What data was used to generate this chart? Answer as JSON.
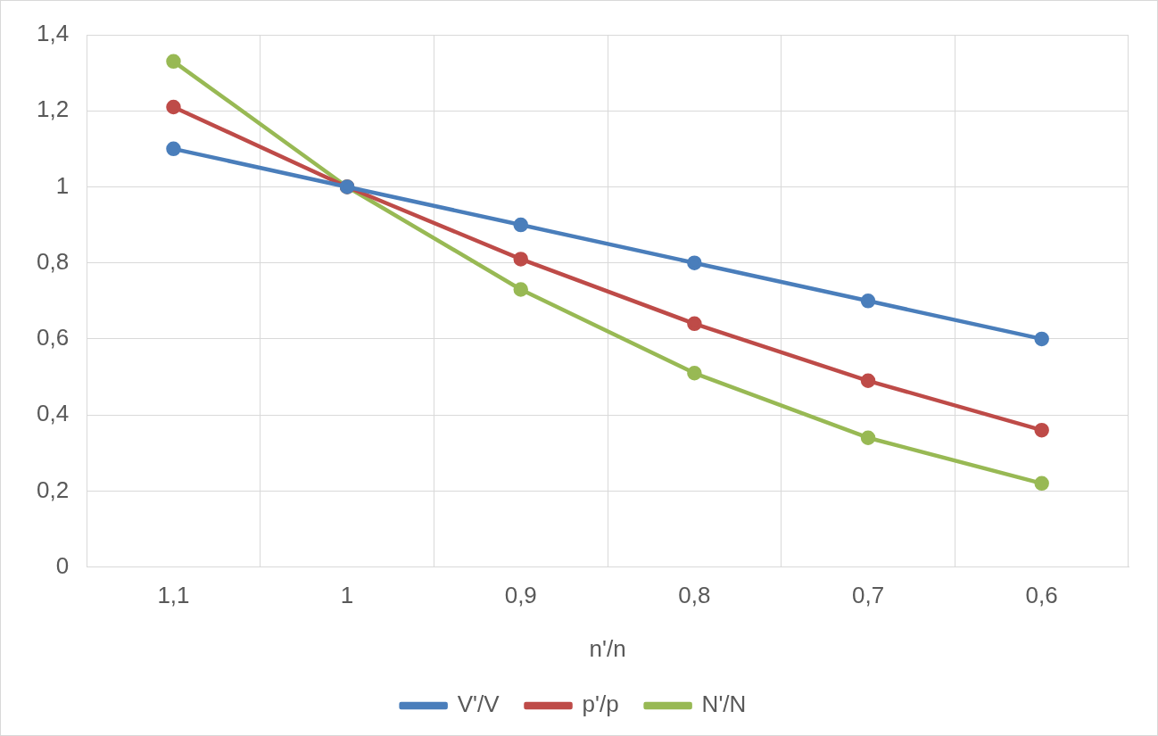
{
  "chart_data": {
    "type": "line",
    "xlabel": "n'/n",
    "categories": [
      "1,1",
      "1",
      "0,9",
      "0,8",
      "0,7",
      "0,6"
    ],
    "series": [
      {
        "name": "V'/V",
        "color": "#4a7ebb",
        "values": [
          1.1,
          1,
          0.9,
          0.8,
          0.7,
          0.6
        ]
      },
      {
        "name": "p'/p",
        "color": "#be4b48",
        "values": [
          1.21,
          1,
          0.81,
          0.64,
          0.49,
          0.36
        ]
      },
      {
        "name": "N'/N",
        "color": "#98b954",
        "values": [
          1.33,
          1,
          0.73,
          0.51,
          0.34,
          0.22
        ]
      }
    ],
    "ylim": [
      0,
      1.4
    ],
    "yticks": [
      0,
      {
        "value": 0.2,
        "label": "0,2"
      },
      {
        "value": 0.4,
        "label": "0,4"
      },
      {
        "value": 0.6,
        "label": "0,6"
      },
      {
        "value": 0.8,
        "label": "0,8"
      },
      1,
      {
        "value": 1.2,
        "label": "1,2"
      },
      {
        "value": 1.4,
        "label": "1,4"
      }
    ],
    "grid": true,
    "legend": "bottom",
    "marker": "circle",
    "line_style": "solid"
  }
}
